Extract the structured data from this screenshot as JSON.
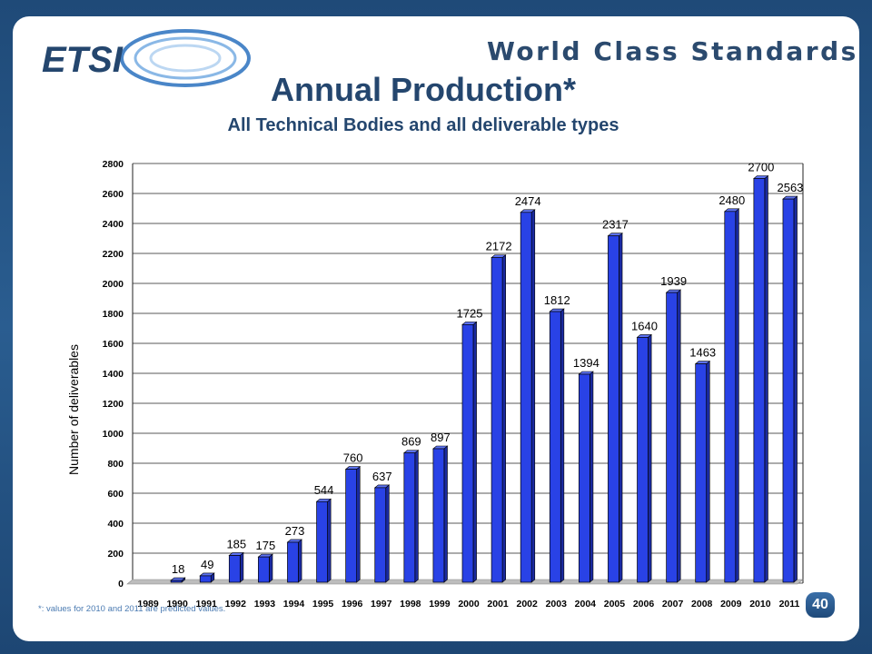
{
  "header": {
    "logo_text": "ETSI",
    "tagline": "World Class Standards"
  },
  "footer": {
    "footnote": "*: values for 2010 and 2011 are predicted values.",
    "page_number": "40"
  },
  "colors": {
    "bar": "#2942e6",
    "bar_side": "#1a2aa0",
    "bar_top": "#5c72f2",
    "title": "#24466e"
  },
  "chart_data": {
    "type": "bar",
    "title": "Annual Production*",
    "subtitle": "All Technical Bodies and all deliverable types",
    "xlabel": "",
    "ylabel": "Number of deliverables",
    "ylim": [
      0,
      2800
    ],
    "yticks": [
      0,
      200,
      400,
      600,
      800,
      1000,
      1200,
      1400,
      1600,
      1800,
      2000,
      2200,
      2400,
      2600,
      2800
    ],
    "grid": true,
    "legend": "none",
    "categories": [
      "1989",
      "1990",
      "1991",
      "1992",
      "1993",
      "1994",
      "1995",
      "1996",
      "1997",
      "1998",
      "1999",
      "2000",
      "2001",
      "2002",
      "2003",
      "2004",
      "2005",
      "2006",
      "2007",
      "2008",
      "2009",
      "2010",
      "2011"
    ],
    "values": [
      null,
      18,
      49,
      185,
      175,
      273,
      544,
      760,
      637,
      869,
      897,
      1725,
      2172,
      2474,
      1812,
      1394,
      2317,
      1640,
      1939,
      1463,
      2480,
      2700,
      2563
    ]
  }
}
